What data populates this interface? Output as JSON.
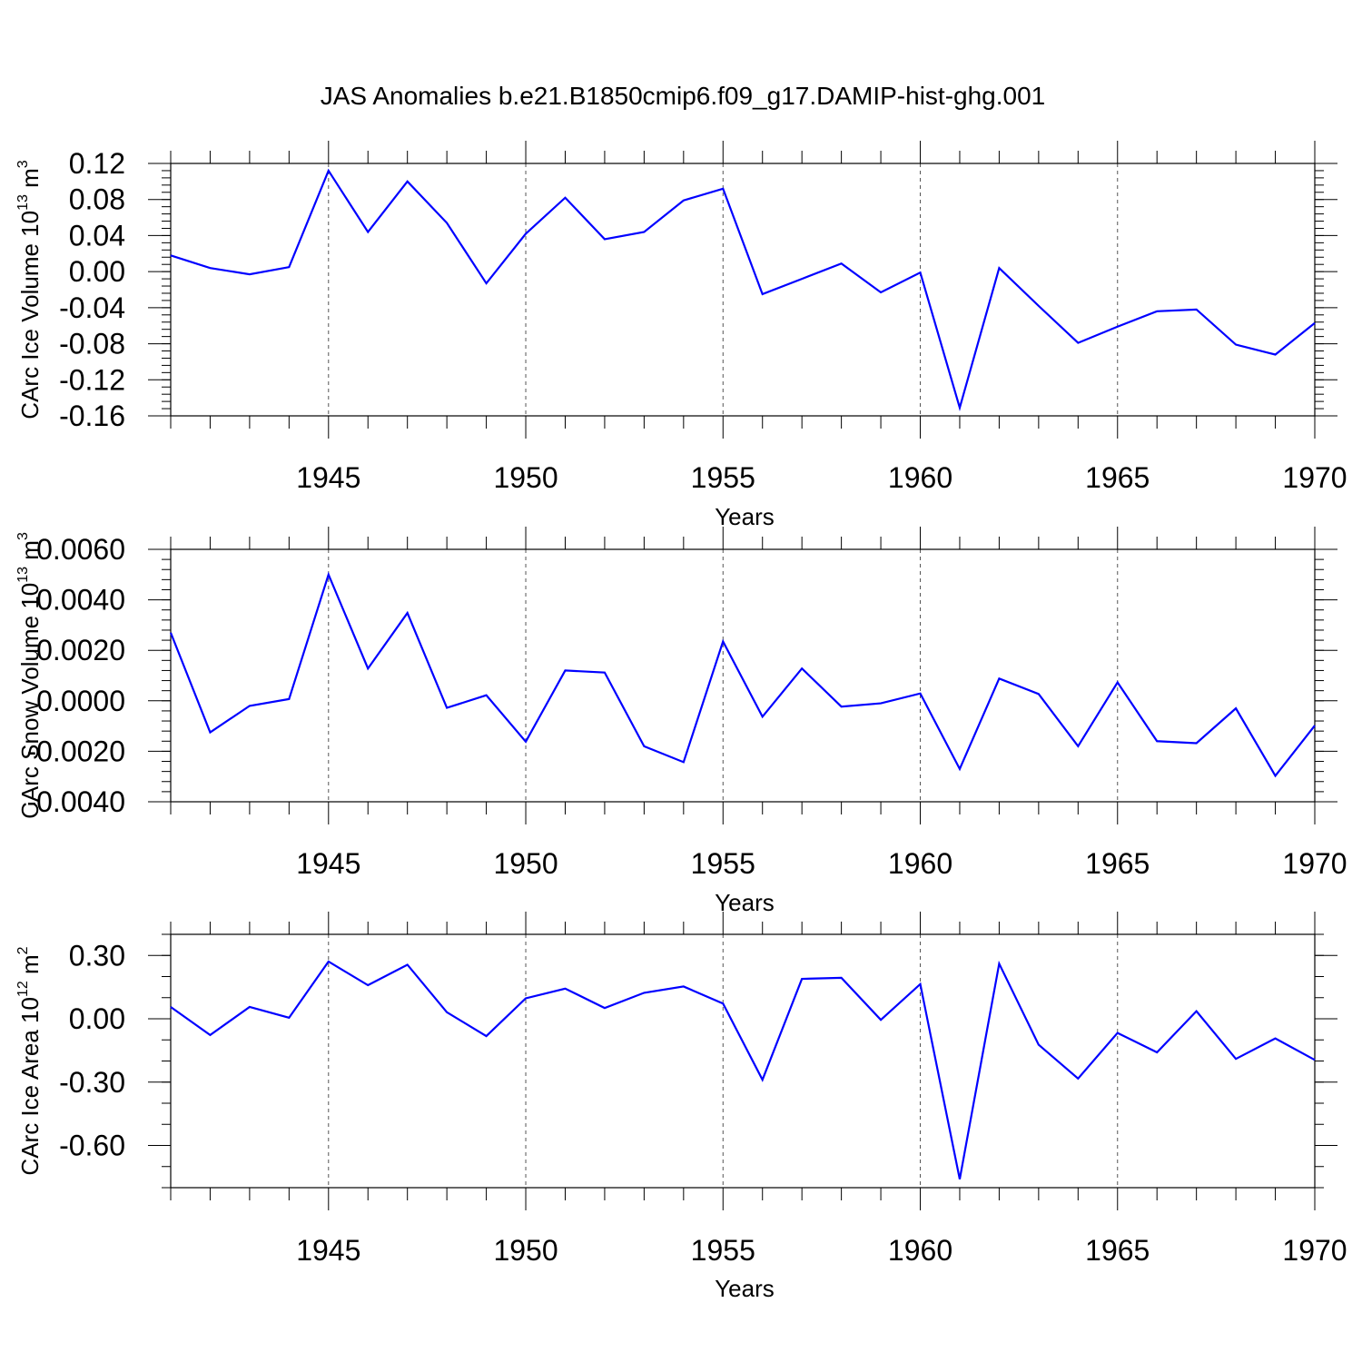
{
  "figure_title": "JAS Anomalies b.e21.B1850cmip6.f09_g17.DAMIP-hist-ghg.001",
  "colors": {
    "line": "#0000ff",
    "axes": "#000000",
    "grid": "#555555",
    "background": "#ffffff"
  },
  "chart_data": [
    {
      "type": "line",
      "title": "JAS Anomalies b.e21.B1850cmip6.f09_g17.DAMIP-hist-ghg.001",
      "ylabel": "CArc Ice Volume 10",
      "ylabel_exponent": "13",
      "ylabel_unit": " m",
      "ylabel_unit_exponent": "3",
      "xlabel": "Years",
      "xlim": [
        1941,
        1970
      ],
      "ylim": [
        -0.16,
        0.12
      ],
      "y_major_ticks": [
        0.12,
        0.08,
        0.04,
        0.0,
        -0.04,
        -0.08,
        -0.12,
        -0.16
      ],
      "y_tick_labels": [
        "0.12",
        "0.08",
        "0.04",
        "0.00",
        "-0.04",
        "-0.08",
        "-0.12",
        "-0.16"
      ],
      "y_minor_step": 0.008,
      "x_major_ticks": [
        1945,
        1950,
        1955,
        1960,
        1965,
        1970
      ],
      "x_tick_labels": [
        "1945",
        "1950",
        "1955",
        "1960",
        "1965",
        "1970"
      ],
      "vertical_gridlines": [
        1945,
        1950,
        1955,
        1960,
        1965
      ],
      "series": [
        {
          "name": "CArc Ice Volume",
          "x": [
            1941,
            1942,
            1943,
            1944,
            1945,
            1946,
            1947,
            1948,
            1949,
            1950,
            1951,
            1952,
            1953,
            1954,
            1955,
            1956,
            1957,
            1958,
            1959,
            1960,
            1961,
            1962,
            1963,
            1964,
            1965,
            1966,
            1967,
            1968,
            1969,
            1970
          ],
          "values": [
            0.018,
            0.004,
            -0.003,
            0.005,
            0.112,
            0.044,
            0.1,
            0.054,
            -0.013,
            0.042,
            0.082,
            0.036,
            0.044,
            0.079,
            0.092,
            -0.025,
            -0.008,
            0.009,
            -0.023,
            -0.001,
            -0.151,
            0.004,
            -0.038,
            -0.079,
            -0.061,
            -0.044,
            -0.042,
            -0.081,
            -0.092,
            -0.057
          ]
        }
      ]
    },
    {
      "type": "line",
      "ylabel": "CArc Snow Volume 10",
      "ylabel_exponent": "13",
      "ylabel_unit": " m",
      "ylabel_unit_exponent": "3",
      "xlabel": "Years",
      "xlim": [
        1941,
        1970
      ],
      "ylim": [
        -0.004,
        0.006
      ],
      "y_major_ticks": [
        0.006,
        0.004,
        0.002,
        0.0,
        -0.002,
        -0.004
      ],
      "y_tick_labels": [
        "0.0060",
        "0.0040",
        "0.0020",
        "0.0000",
        "-0.0020",
        "-0.0040"
      ],
      "y_minor_step": 0.0004,
      "x_major_ticks": [
        1945,
        1950,
        1955,
        1960,
        1965,
        1970
      ],
      "x_tick_labels": [
        "1945",
        "1950",
        "1955",
        "1960",
        "1965",
        "1970"
      ],
      "vertical_gridlines": [
        1945,
        1950,
        1955,
        1960,
        1965
      ],
      "series": [
        {
          "name": "CArc Snow Volume",
          "x": [
            1941,
            1942,
            1943,
            1944,
            1945,
            1946,
            1947,
            1948,
            1949,
            1950,
            1951,
            1952,
            1953,
            1954,
            1955,
            1956,
            1957,
            1958,
            1959,
            1960,
            1961,
            1962,
            1963,
            1964,
            1965,
            1966,
            1967,
            1968,
            1969,
            1970
          ],
          "values": [
            0.0027,
            -0.00125,
            -0.0002,
            7e-05,
            0.005,
            0.00128,
            0.00348,
            -0.00028,
            0.00022,
            -0.00162,
            0.0012,
            0.00112,
            -0.0018,
            -0.00243,
            0.00235,
            -0.00063,
            0.00128,
            -0.00023,
            -0.0001,
            0.00029,
            -0.0027,
            0.00088,
            0.00027,
            -0.0018,
            0.00073,
            -0.0016,
            -0.00168,
            -0.0003,
            -0.00297,
            -0.00098
          ]
        }
      ]
    },
    {
      "type": "line",
      "ylabel": "CArc Ice Area 10",
      "ylabel_exponent": "12",
      "ylabel_unit": " m",
      "ylabel_unit_exponent": "2",
      "xlabel": "Years",
      "xlim": [
        1941,
        1970
      ],
      "ylim": [
        -0.8,
        0.4
      ],
      "y_major_ticks": [
        0.3,
        0.0,
        -0.3,
        -0.6
      ],
      "y_tick_labels": [
        "0.30",
        "0.00",
        "-0.30",
        "-0.60"
      ],
      "y_minor_step": 0.1,
      "x_major_ticks": [
        1945,
        1950,
        1955,
        1960,
        1965,
        1970
      ],
      "x_tick_labels": [
        "1945",
        "1950",
        "1955",
        "1960",
        "1965",
        "1970"
      ],
      "vertical_gridlines": [
        1945,
        1950,
        1955,
        1960,
        1965
      ],
      "series": [
        {
          "name": "CArc Ice Area",
          "x": [
            1941,
            1942,
            1943,
            1944,
            1945,
            1946,
            1947,
            1948,
            1949,
            1950,
            1951,
            1952,
            1953,
            1954,
            1955,
            1956,
            1957,
            1958,
            1959,
            1960,
            1961,
            1962,
            1963,
            1964,
            1965,
            1966,
            1967,
            1968,
            1969,
            1970
          ],
          "values": [
            0.056,
            -0.077,
            0.056,
            0.005,
            0.271,
            0.159,
            0.256,
            0.031,
            -0.082,
            0.097,
            0.143,
            0.051,
            0.123,
            0.153,
            0.072,
            -0.289,
            0.189,
            0.194,
            -0.005,
            0.164,
            -0.76,
            0.261,
            -0.123,
            -0.283,
            -0.067,
            -0.159,
            0.036,
            -0.19,
            -0.093,
            -0.195
          ]
        }
      ]
    }
  ]
}
